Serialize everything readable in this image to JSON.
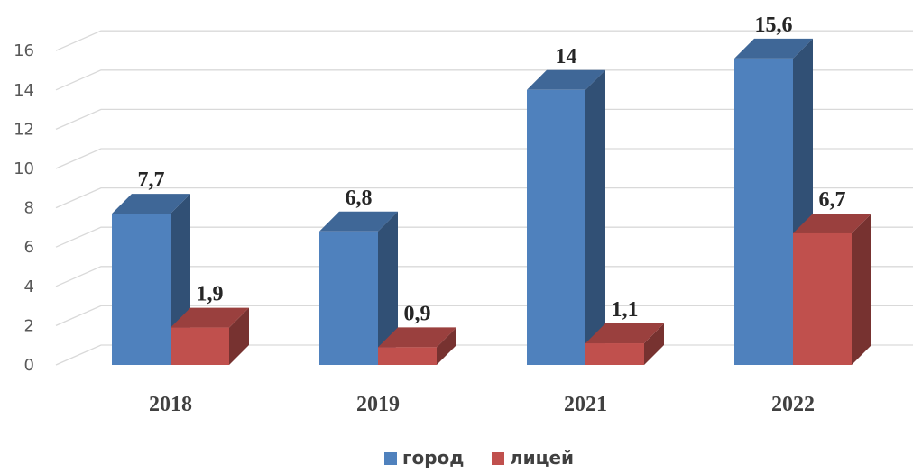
{
  "chart_data": {
    "type": "bar",
    "categories": [
      "2018",
      "2019",
      "2021",
      "2022"
    ],
    "series": [
      {
        "name": "город",
        "values": [
          7.7,
          6.8,
          14,
          15.6
        ],
        "labels": [
          "7,7",
          "6,8",
          "14",
          "15,6"
        ]
      },
      {
        "name": "лицей",
        "values": [
          1.9,
          0.9,
          1.1,
          6.7
        ],
        "labels": [
          "1,9",
          "0,9",
          "1,1",
          "6,7"
        ]
      }
    ],
    "ylim": [
      0,
      16
    ],
    "yticks": [
      "0",
      "2",
      "4",
      "6",
      "8",
      "10",
      "12",
      "14",
      "16"
    ],
    "grid": true,
    "legend": "bottom",
    "colors": [
      "#4F81BD",
      "#C0504D"
    ]
  }
}
